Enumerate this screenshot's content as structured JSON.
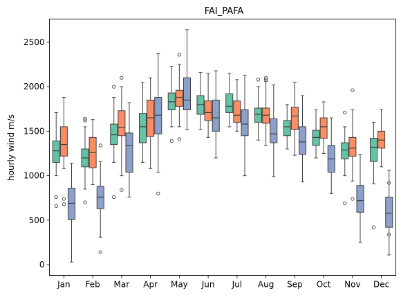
{
  "chart_data": {
    "type": "box",
    "title": "FAI_PAFA",
    "xlabel": "",
    "ylabel": "hourly wind m/s",
    "ylim": [
      -120,
      2760
    ],
    "yticks": [
      0,
      500,
      1000,
      1500,
      2000,
      2500
    ],
    "categories": [
      "Jan",
      "Feb",
      "Mar",
      "Apr",
      "May",
      "Jun",
      "Jul",
      "Aug",
      "Sep",
      "Oct",
      "Nov",
      "Dec"
    ],
    "legend": "none",
    "grid": false,
    "series": [
      {
        "color": "#66c2a5",
        "boxes": [
          {
            "whislo": 1000,
            "q1": 1150,
            "med": 1280,
            "q3": 1390,
            "whishi": 1710,
            "fliers": [
              760,
              660
            ]
          },
          {
            "whislo": 850,
            "q1": 1100,
            "med": 1200,
            "q3": 1300,
            "whishi": 1550,
            "fliers": [
              700,
              1620,
              1640
            ]
          },
          {
            "whislo": 1150,
            "q1": 1350,
            "med": 1460,
            "q3": 1580,
            "whishi": 1880,
            "fliers": [
              760,
              2000
            ]
          },
          {
            "whislo": 1150,
            "q1": 1370,
            "med": 1550,
            "q3": 1700,
            "whishi": 2050,
            "fliers": []
          },
          {
            "whislo": 1550,
            "q1": 1740,
            "med": 1830,
            "q3": 1930,
            "whishi": 2230,
            "fliers": [
              1390
            ]
          },
          {
            "whislo": 1520,
            "q1": 1690,
            "med": 1800,
            "q3": 1900,
            "whishi": 2160,
            "fliers": []
          },
          {
            "whislo": 1550,
            "q1": 1710,
            "med": 1780,
            "q3": 1920,
            "whishi": 2150,
            "fliers": []
          },
          {
            "whislo": 1400,
            "q1": 1600,
            "med": 1690,
            "q3": 1760,
            "whishi": 2000,
            "fliers": [
              2080
            ]
          },
          {
            "whislo": 1300,
            "q1": 1450,
            "med": 1550,
            "q3": 1620,
            "whishi": 1800,
            "fliers": []
          },
          {
            "whislo": 1200,
            "q1": 1340,
            "med": 1430,
            "q3": 1510,
            "whishi": 1740,
            "fliers": []
          },
          {
            "whislo": 1000,
            "q1": 1190,
            "med": 1290,
            "q3": 1370,
            "whishi": 1550,
            "fliers": [
              690,
              1710
            ]
          },
          {
            "whislo": 910,
            "q1": 1160,
            "med": 1320,
            "q3": 1420,
            "whishi": 1600,
            "fliers": [
              420
            ]
          }
        ]
      },
      {
        "color": "#fc8d62",
        "boxes": [
          {
            "whislo": 1080,
            "q1": 1220,
            "med": 1350,
            "q3": 1550,
            "whishi": 1880,
            "fliers": [
              740,
              680
            ]
          },
          {
            "whislo": 900,
            "q1": 1090,
            "med": 1260,
            "q3": 1430,
            "whishi": 1630,
            "fliers": []
          },
          {
            "whislo": 1000,
            "q1": 1450,
            "med": 1540,
            "q3": 1730,
            "whishi": 2000,
            "fliers": [
              840,
              2100
            ]
          },
          {
            "whislo": 1080,
            "q1": 1440,
            "med": 1650,
            "q3": 1850,
            "whishi": 2100,
            "fliers": []
          },
          {
            "whislo": 1550,
            "q1": 1780,
            "med": 1880,
            "q3": 1960,
            "whishi": 2250,
            "fliers": [
              1410,
              2360
            ]
          },
          {
            "whislo": 1430,
            "q1": 1620,
            "med": 1710,
            "q3": 1840,
            "whishi": 2150,
            "fliers": []
          },
          {
            "whislo": 1500,
            "q1": 1600,
            "med": 1680,
            "q3": 1840,
            "whishi": 2080,
            "fliers": []
          },
          {
            "whislo": 1340,
            "q1": 1590,
            "med": 1680,
            "q3": 1760,
            "whishi": 2060,
            "fliers": [
              2080,
              2100
            ]
          },
          {
            "whislo": 1230,
            "q1": 1520,
            "med": 1670,
            "q3": 1770,
            "whishi": 2050,
            "fliers": []
          },
          {
            "whislo": 1250,
            "q1": 1420,
            "med": 1550,
            "q3": 1650,
            "whishi": 1830,
            "fliers": []
          },
          {
            "whislo": 940,
            "q1": 1220,
            "med": 1310,
            "q3": 1430,
            "whishi": 1740,
            "fliers": [
              1960,
              740
            ]
          },
          {
            "whislo": 1100,
            "q1": 1310,
            "med": 1400,
            "q3": 1500,
            "whishi": 1740,
            "fliers": []
          }
        ]
      },
      {
        "color": "#8da0cb",
        "boxes": [
          {
            "whislo": 30,
            "q1": 510,
            "med": 690,
            "q3": 860,
            "whishi": 1140,
            "fliers": []
          },
          {
            "whislo": 310,
            "q1": 630,
            "med": 760,
            "q3": 880,
            "whishi": 1160,
            "fliers": [
              140,
              1340
            ]
          },
          {
            "whislo": 760,
            "q1": 1040,
            "med": 1340,
            "q3": 1480,
            "whishi": 1820,
            "fliers": []
          },
          {
            "whislo": 1040,
            "q1": 1470,
            "med": 1680,
            "q3": 1880,
            "whishi": 2370,
            "fliers": [
              800
            ]
          },
          {
            "whislo": 1520,
            "q1": 1740,
            "med": 1850,
            "q3": 2100,
            "whishi": 2640,
            "fliers": []
          },
          {
            "whislo": 1200,
            "q1": 1500,
            "med": 1650,
            "q3": 1850,
            "whishi": 2180,
            "fliers": []
          },
          {
            "whislo": 1000,
            "q1": 1450,
            "med": 1580,
            "q3": 1740,
            "whishi": 2130,
            "fliers": []
          },
          {
            "whislo": 990,
            "q1": 1370,
            "med": 1470,
            "q3": 1640,
            "whishi": 2020,
            "fliers": []
          },
          {
            "whislo": 930,
            "q1": 1240,
            "med": 1380,
            "q3": 1550,
            "whishi": 1900,
            "fliers": []
          },
          {
            "whislo": 800,
            "q1": 1040,
            "med": 1190,
            "q3": 1340,
            "whishi": 1650,
            "fliers": []
          },
          {
            "whislo": 250,
            "q1": 590,
            "med": 720,
            "q3": 890,
            "whishi": 1240,
            "fliers": []
          },
          {
            "whislo": 110,
            "q1": 420,
            "med": 580,
            "q3": 760,
            "whishi": 1060,
            "fliers": [
              920,
              340
            ]
          }
        ]
      }
    ]
  }
}
